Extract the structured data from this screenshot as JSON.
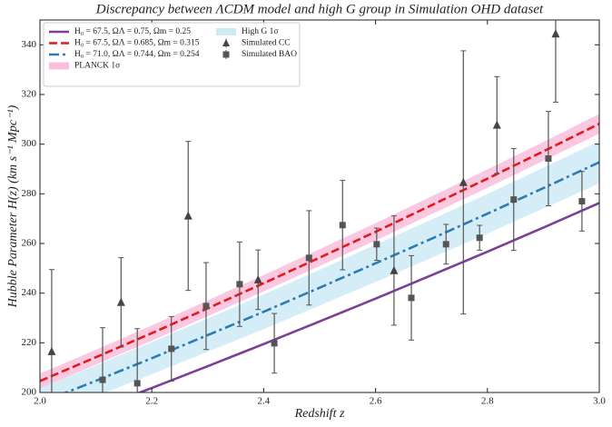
{
  "chart_data": {
    "type": "line",
    "title": "Discrepancy between ΛCDM model and high G group in Simulation OHD dataset",
    "xlabel": "Redshift z",
    "ylabel": "Hubble Parameter H(z) (km s⁻¹ Mpc⁻¹)",
    "xlim": [
      2.0,
      3.0
    ],
    "ylim": [
      200,
      350
    ],
    "xticks": [
      {
        "value": 2.0,
        "label": "2.0"
      },
      {
        "value": 2.2,
        "label": "2.2"
      },
      {
        "value": 2.4,
        "label": "2.4"
      },
      {
        "value": 2.6,
        "label": "2.6"
      },
      {
        "value": 2.8,
        "label": "2.8"
      },
      {
        "value": 3.0,
        "label": "3.0"
      }
    ],
    "yticks": [
      200,
      220,
      240,
      260,
      280,
      300,
      320,
      340
    ],
    "legend": "upper left",
    "x": [
      2.0,
      2.1,
      2.2,
      2.3,
      2.4,
      2.5,
      2.6,
      2.7,
      2.8,
      2.9,
      3.0
    ],
    "bands": [
      {
        "name": "PLANCK 1σ",
        "color": "#f9c0dc",
        "lower": [
          201.6,
          211.2,
          220.8,
          230.7,
          240.7,
          250.9,
          261.2,
          271.8,
          282.4,
          293.3,
          304.2
        ],
        "upper": [
          207.6,
          217.2,
          227.0,
          237.1,
          247.3,
          257.7,
          268.2,
          279.0,
          289.8,
          300.9,
          312.2
        ]
      },
      {
        "name": "High G 1σ",
        "color": "#cdeaf4",
        "lower": [
          189.8,
          198.5,
          207.3,
          216.4,
          225.5,
          235.0,
          244.5,
          254.2,
          264.0,
          274.1,
          284.2
        ],
        "upper": [
          201.8,
          210.9,
          220.3,
          229.8,
          239.5,
          249.4,
          259.5,
          269.6,
          280.0,
          290.5,
          301.2
        ]
      }
    ],
    "series": [
      {
        "name": "H₀ = 67.5, ΩΛ = 0.75, Ωm = 0.25",
        "color": "#7b3f98",
        "dash": "solid",
        "values": [
          184.9,
          193.3,
          201.8,
          210.6,
          219.5,
          228.6,
          237.8,
          247.2,
          256.7,
          266.4,
          276.3
        ]
      },
      {
        "name": "H₀ = 67.5, ΩΛ = 0.685, Ωm = 0.315",
        "color": "#e31a1c",
        "dash": "dashed",
        "values": [
          204.6,
          214.2,
          223.9,
          233.9,
          244.0,
          254.3,
          264.7,
          275.4,
          286.1,
          297.1,
          308.2
        ]
      },
      {
        "name": "H₀ = 71.0, ΩΛ = 0.744, Ωm = 0.254",
        "color": "#2e7bb6",
        "dash": "dashdot",
        "values": [
          195.8,
          204.7,
          213.8,
          223.1,
          232.5,
          242.2,
          252.0,
          261.9,
          272.0,
          282.3,
          292.7
        ]
      }
    ],
    "points": [
      {
        "name": "Simulated CC",
        "marker": "triangle",
        "color": "#444444",
        "x": [
          2.021,
          2.145,
          2.265,
          2.39,
          2.633,
          2.757,
          2.817,
          2.922
        ],
        "values": [
          216.5,
          236.3,
          271.1,
          245.4,
          249.1,
          284.6,
          307.7,
          344.4
        ],
        "errors": [
          33,
          18,
          30,
          12,
          22,
          53,
          19.5,
          27.5
        ]
      },
      {
        "name": "Simulated BAO",
        "marker": "square",
        "color": "#555555",
        "x": [
          2.112,
          2.174,
          2.235,
          2.297,
          2.357,
          2.419,
          2.481,
          2.541,
          2.602,
          2.664,
          2.726,
          2.786,
          2.847,
          2.909,
          2.969
        ],
        "values": [
          205.1,
          203.7,
          217.6,
          234.8,
          243.6,
          219.8,
          254.2,
          267.4,
          259.7,
          238.1,
          259.7,
          262.3,
          277.7,
          294.2,
          277.0
        ],
        "errors": [
          21,
          22,
          13,
          17.5,
          17,
          12,
          19,
          18,
          6.5,
          17,
          8,
          5,
          20.5,
          19,
          12
        ]
      }
    ]
  }
}
